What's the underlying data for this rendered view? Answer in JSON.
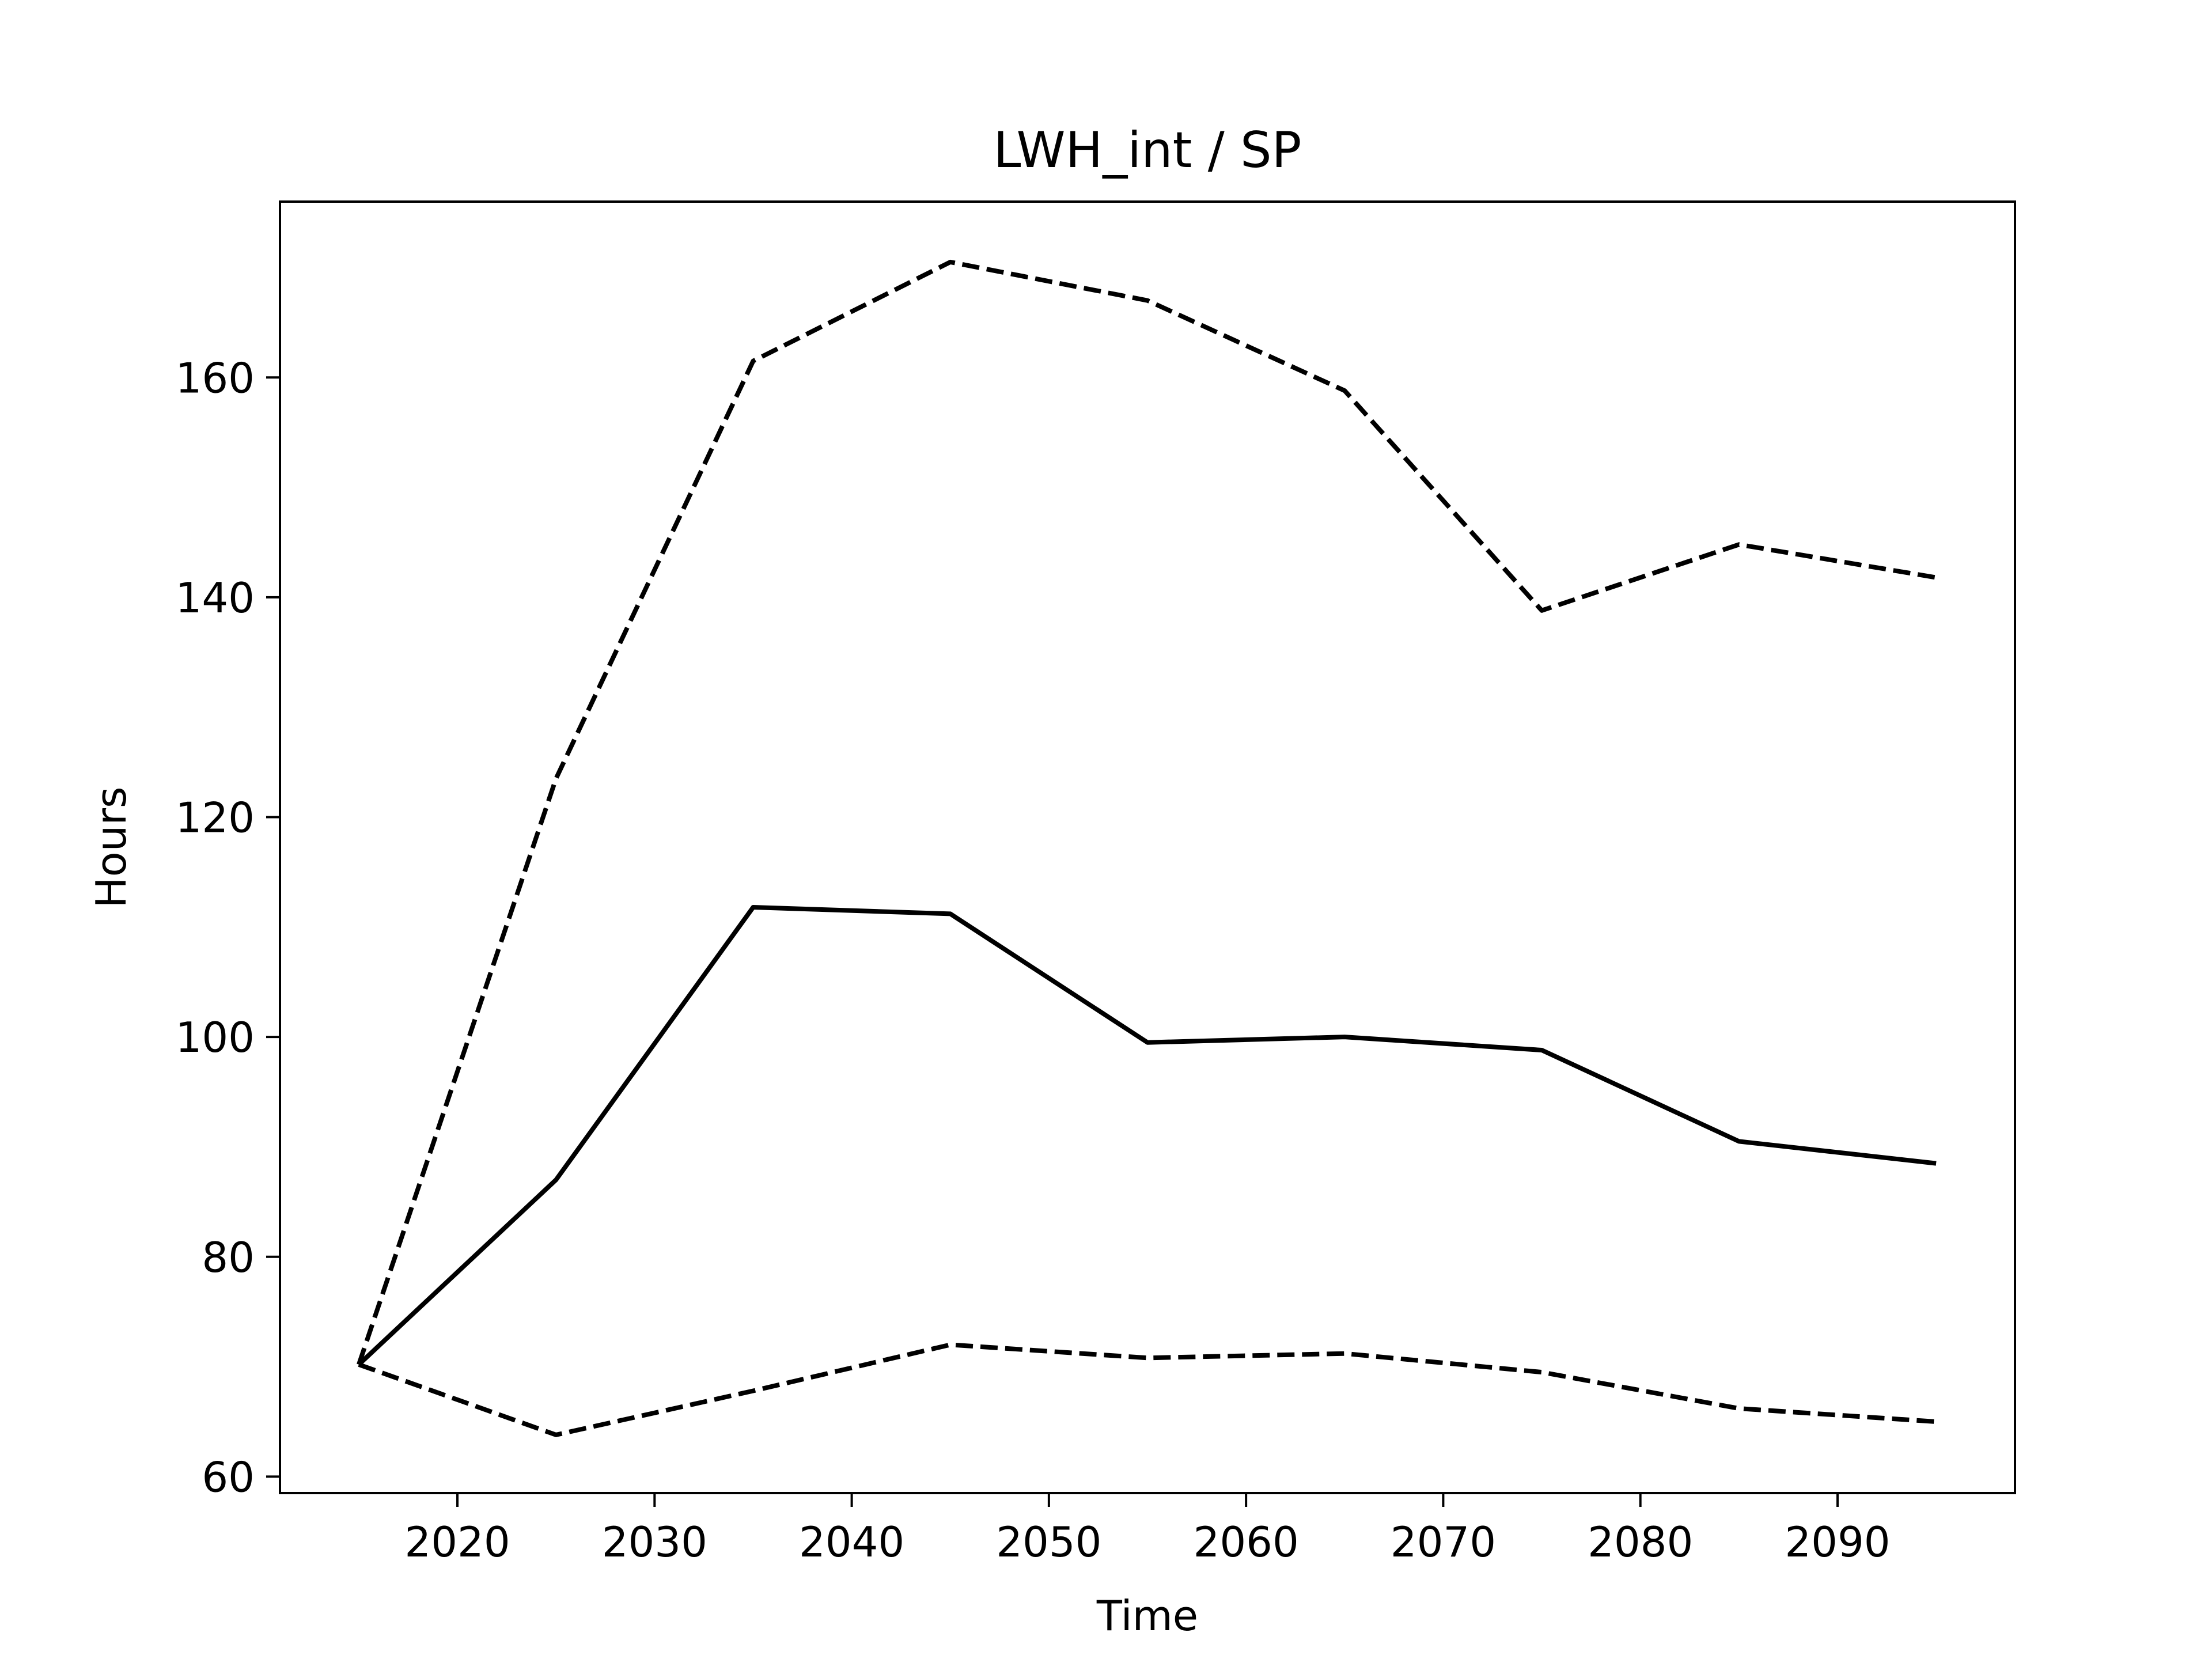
{
  "chart_data": {
    "type": "line",
    "title": "LWH_int / SP",
    "xlabel": "Time",
    "ylabel": "Hours",
    "xlim": [
      2011,
      2099
    ],
    "ylim": [
      58.5,
      176
    ],
    "xticks": [
      2020,
      2030,
      2040,
      2050,
      2060,
      2070,
      2080,
      2090
    ],
    "yticks": [
      60,
      80,
      100,
      120,
      140,
      160
    ],
    "grid": false,
    "legend": "none",
    "x": [
      2015,
      2025,
      2035,
      2045,
      2055,
      2065,
      2075,
      2085,
      2095
    ],
    "series": [
      {
        "style": "solid",
        "color": "#000000",
        "values": [
          70.2,
          87.0,
          111.8,
          111.2,
          99.5,
          100.0,
          98.8,
          90.5,
          88.5
        ]
      },
      {
        "style": "dashed",
        "color": "#000000",
        "values": [
          70.2,
          123.5,
          161.5,
          170.5,
          167.0,
          158.8,
          138.8,
          144.8,
          141.8
        ]
      },
      {
        "style": "dashed",
        "color": "#000000",
        "values": [
          70.2,
          63.8,
          67.8,
          72.0,
          70.8,
          71.2,
          69.5,
          66.2,
          65.0
        ]
      }
    ]
  }
}
